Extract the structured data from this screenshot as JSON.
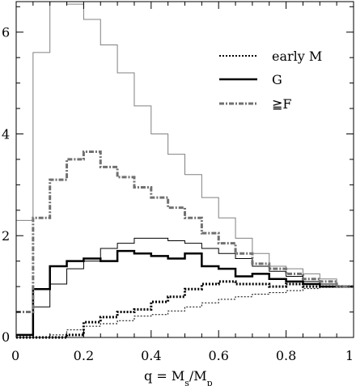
{
  "chart_data": {
    "type": "line",
    "step": true,
    "xlabel": "q = M_s/M_p",
    "xlim": [
      0,
      1
    ],
    "ylim": [
      0,
      6.6
    ],
    "x_ticks": [
      0,
      0.2,
      0.4,
      0.6,
      0.8,
      1
    ],
    "x_tick_labels": [
      "0",
      "0.2",
      "0.4",
      "0.6",
      "0.8",
      "1"
    ],
    "y_ticks": [
      0,
      2,
      4,
      6
    ],
    "y_tick_labels": [
      "0",
      "2",
      "4",
      "6"
    ],
    "x_edges": [
      0,
      0.05,
      0.1,
      0.15,
      0.2,
      0.25,
      0.3,
      0.35,
      0.4,
      0.45,
      0.5,
      0.55,
      0.6,
      0.65,
      0.7,
      0.75,
      0.8,
      0.85,
      0.9,
      0.95,
      1.0
    ],
    "legend": {
      "placement": "top-right",
      "entries": [
        {
          "label": "early M",
          "style": "dotted",
          "color": "#000000",
          "width": 2
        },
        {
          "label": "G",
          "style": "solid",
          "color": "#000000",
          "width": 2.5
        },
        {
          "label": "≧F",
          "style": "dashdot",
          "color": "#707070",
          "width": 3
        }
      ]
    },
    "series": [
      {
        "name": "early M",
        "style": "dotted",
        "color": "#000000",
        "width": 3,
        "values": [
          0.0,
          0.0,
          0.0,
          0.05,
          0.3,
          0.4,
          0.5,
          0.55,
          0.7,
          0.8,
          0.95,
          1.05,
          1.1,
          1.05,
          1.05,
          1.0,
          1.05,
          1.0,
          1.0,
          1.0
        ]
      },
      {
        "style": "dotted",
        "color": "#000000",
        "width": 1,
        "values": [
          0.0,
          0.0,
          0.05,
          0.15,
          0.22,
          0.27,
          0.33,
          0.42,
          0.45,
          0.52,
          0.6,
          0.68,
          0.75,
          0.8,
          0.85,
          0.88,
          0.92,
          0.96,
          1.0,
          1.0
        ]
      },
      {
        "name": "G",
        "style": "solid",
        "color": "#000000",
        "width": 2.5,
        "values": [
          0.05,
          0.95,
          1.4,
          1.5,
          1.55,
          1.5,
          1.7,
          1.65,
          1.6,
          1.55,
          1.65,
          1.4,
          1.35,
          1.2,
          1.25,
          1.15,
          1.1,
          1.05,
          1.0,
          1.0
        ]
      },
      {
        "style": "solid",
        "color": "#000000",
        "width": 1,
        "values": [
          0.0,
          0.6,
          1.05,
          1.35,
          1.5,
          1.75,
          1.85,
          1.95,
          1.95,
          1.9,
          1.85,
          1.75,
          1.65,
          1.55,
          1.4,
          1.3,
          1.2,
          1.1,
          1.05,
          1.0
        ]
      },
      {
        "name": "≧F",
        "style": "dashdot",
        "color": "#707070",
        "width": 3,
        "values": [
          0.5,
          2.35,
          3.1,
          3.5,
          3.65,
          3.35,
          3.15,
          2.95,
          2.75,
          2.55,
          2.35,
          2.05,
          1.85,
          1.65,
          1.45,
          1.35,
          1.25,
          1.15,
          1.1,
          1.0
        ]
      },
      {
        "style": "solid",
        "color": "#808080",
        "width": 1,
        "values": [
          2.3,
          5.6,
          6.6,
          6.55,
          6.25,
          5.75,
          5.2,
          4.55,
          4.0,
          3.6,
          3.2,
          2.75,
          2.35,
          1.95,
          1.65,
          1.4,
          1.35,
          1.25,
          1.15,
          1.0
        ]
      }
    ]
  }
}
